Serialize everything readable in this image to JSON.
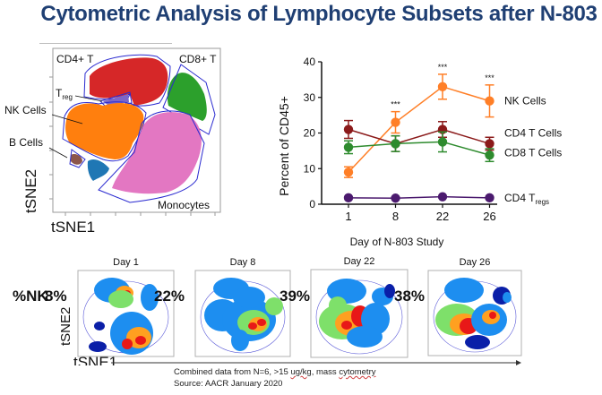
{
  "title": "Cytometric Analysis of Lymphocyte Subsets after N-803",
  "tsne_overview": {
    "xlabel": "tSNE1",
    "ylabel": "tSNE2",
    "populations": [
      {
        "label": "CD4+ T",
        "color": "#d62728"
      },
      {
        "label": "CD8+ T",
        "color": "#2ca02c"
      },
      {
        "label": "Treg",
        "label_main": "T",
        "label_sub": "reg",
        "color": "#7b66c9"
      },
      {
        "label": "NK Cells",
        "color": "#ff7f0e"
      },
      {
        "label": "B Cells",
        "color": "#8c564b"
      },
      {
        "label": "Monocytes",
        "color": "#e377c2"
      },
      {
        "label": "",
        "color": "#1f77b4"
      }
    ],
    "gate_color": "#2a2ad0"
  },
  "chart_data": {
    "type": "line",
    "title": "",
    "xlabel": "Day of N-803 Study",
    "ylabel": "Percent of CD45+",
    "categories": [
      "1",
      "8",
      "22",
      "26"
    ],
    "ylim": [
      0,
      40
    ],
    "yticks": [
      0,
      10,
      20,
      30,
      40
    ],
    "grid": false,
    "legend_placement": "right (inline labels)",
    "series": [
      {
        "name": "NK Cells",
        "label_main": "NK Cells",
        "label_sub": "",
        "color": "#ff7f27",
        "values": [
          9,
          23,
          33,
          29
        ],
        "errors": [
          1.5,
          3,
          3.5,
          4.5
        ]
      },
      {
        "name": "CD4 T Cells",
        "label_main": "CD4 T Cells",
        "label_sub": "",
        "color": "#8b1a1a",
        "values": [
          21,
          17,
          21,
          17
        ],
        "errors": [
          2.5,
          2.2,
          2.2,
          1.8
        ]
      },
      {
        "name": "CD8 T Cells",
        "label_main": "CD8 T Cells",
        "label_sub": "",
        "color": "#2e8b2e",
        "values": [
          16,
          17,
          17.5,
          13.8
        ],
        "errors": [
          1.8,
          2.2,
          2.8,
          1.8
        ]
      },
      {
        "name": "CD4 Tregs",
        "label_main": "CD4 T",
        "label_sub": "regs",
        "color": "#4b1a6e",
        "values": [
          1.8,
          1.7,
          2.1,
          1.8
        ],
        "errors": [
          0.3,
          0.3,
          0.3,
          0.3
        ]
      }
    ],
    "annotations": [
      {
        "category": "8",
        "text": "***"
      },
      {
        "category": "22",
        "text": "***"
      },
      {
        "category": "26",
        "text": "***"
      }
    ]
  },
  "density_panels": {
    "row_label": "%NK",
    "xlabel": "tSNE1",
    "ylabel": "tSNE2",
    "panels": [
      {
        "day": "Day 1",
        "nk_percent": "8%"
      },
      {
        "day": "Day 8",
        "nk_percent": "22%"
      },
      {
        "day": "Day 22",
        "nk_percent": "39%"
      },
      {
        "day": "Day 26",
        "nk_percent": "38%"
      }
    ]
  },
  "footnote": {
    "line1_prefix": "Combined data from N=6, >15 ",
    "line1_unit": "ug/kg",
    "line1_mid": ", mass ",
    "line1_word": "cytometry",
    "line2": "Source: AACR January 2020"
  }
}
